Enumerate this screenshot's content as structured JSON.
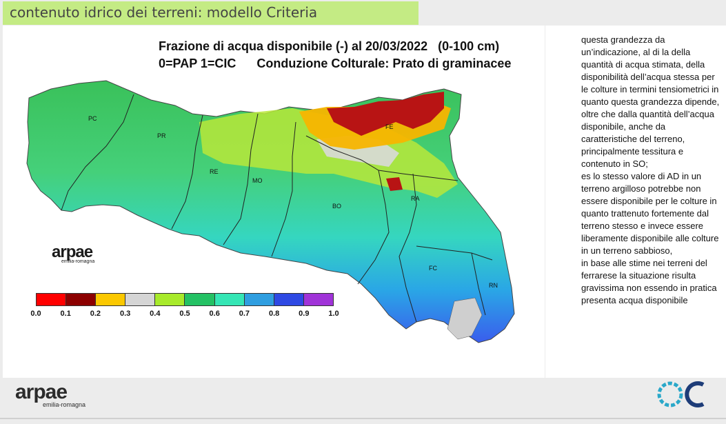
{
  "slide_title": "contenuto idrico dei terreni: modello Criteria",
  "map": {
    "title": "Frazione di acqua disponibile (-) al 20/03/2022   (0-100 cm)",
    "subtitle": "0=PAP 1=CIC      Conduzione Colturale: Prato di graminacee",
    "provinces": [
      "PC",
      "PR",
      "RE",
      "MO",
      "BO",
      "FE",
      "RA",
      "FC",
      "RN"
    ],
    "legend": {
      "labels": [
        "0.0",
        "0.1",
        "0.2",
        "0.3",
        "0.4",
        "0.5",
        "0.6",
        "0.7",
        "0.8",
        "0.9",
        "1.0"
      ],
      "colors": [
        "#ff0000",
        "#b30000",
        "#8c0000",
        "#f7b500",
        "#fbc800",
        "#dedede",
        "#d5d5d5",
        "#c7f233",
        "#a8ea2b",
        "#34c85c",
        "#24c164",
        "#2ef0aa",
        "#35e6b5",
        "#33b8e8",
        "#2f9ee0",
        "#3a56ee",
        "#2e49e3",
        "#8a3fe0",
        "#a033d8"
      ]
    },
    "logo": {
      "word": "arpae",
      "sub": "emilia-romagna"
    }
  },
  "notes": [
    "questa grandezza da un’indicazione, al di la della quantità di acqua stimata, della disponibilità dell’acqua stessa per le colture in termini tensiometrici in quanto questa grandezza dipende, oltre che dalla quantità dell’acqua disponibile, anche da caratteristiche del terreno, principalmente tessitura e contenuto in SO;",
    "es lo stesso valore di AD in un terreno argilloso potrebbe non essere disponibile per le colture in quanto trattenuto fortemente dal terreno stesso e invece essere liberamente disponibile alle colture in un terreno sabbioso,",
    "in base alle stime nei terreni del ferrarese la situazione risulta gravissima non essendo in pratica presenta acqua disponibile"
  ],
  "footer": {
    "logo_word": "arpae",
    "logo_sub": "emilia-romagna"
  }
}
